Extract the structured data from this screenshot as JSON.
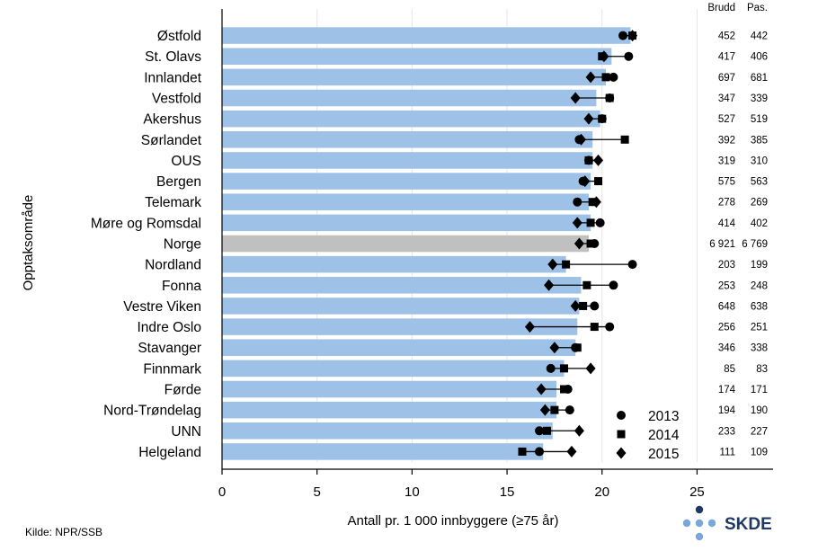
{
  "chart_data": {
    "type": "bar",
    "orientation": "horizontal",
    "ylabel": "Opptaksområde",
    "xlabel": "Antall pr. 1 000 innbyggere (≥75 år)",
    "xlim": [
      0,
      29
    ],
    "xticks": [
      "0",
      "5",
      "10",
      "15",
      "20",
      "25"
    ],
    "xtick_values": [
      0,
      5,
      10,
      15,
      20,
      25
    ],
    "grid": true,
    "legend_position": "bottom-right",
    "bar_color": "#9ec1e8",
    "highlight_bar_color": "#c0c0c0",
    "highlight_category": "Norge",
    "categories": [
      "Østfold",
      "St. Olavs",
      "Innlandet",
      "Vestfold",
      "Akershus",
      "Sørlandet",
      "OUS",
      "Bergen",
      "Telemark",
      "Møre og Romsdal",
      "Norge",
      "Nordland",
      "Fonna",
      "Vestre Viken",
      "Indre Oslo",
      "Stavanger",
      "Finnmark",
      "Førde",
      "Nord-Trøndelag",
      "UNN",
      "Helgeland"
    ],
    "values": [
      21.5,
      20.5,
      20.2,
      19.7,
      19.9,
      19.5,
      19.5,
      19.4,
      19.3,
      19.4,
      19.3,
      18.1,
      18.9,
      18.8,
      18.7,
      18.6,
      18.0,
      17.6,
      17.6,
      17.4,
      16.9
    ],
    "series": [
      {
        "name": "2013",
        "marker": "circle",
        "values": [
          21.1,
          21.4,
          20.6,
          20.4,
          20.0,
          18.8,
          19.3,
          19.0,
          18.7,
          19.9,
          19.6,
          21.6,
          20.6,
          19.6,
          20.4,
          18.6,
          17.3,
          18.2,
          18.3,
          16.7,
          16.7
        ]
      },
      {
        "name": "2014",
        "marker": "square",
        "values": [
          21.6,
          20.0,
          20.2,
          20.4,
          20.0,
          21.2,
          19.3,
          19.8,
          19.5,
          19.4,
          19.4,
          18.1,
          19.2,
          19.0,
          19.6,
          18.7,
          18.0,
          18.0,
          17.5,
          17.1,
          15.8
        ]
      },
      {
        "name": "2015",
        "marker": "diamond",
        "values": [
          21.6,
          20.1,
          19.4,
          18.6,
          19.3,
          18.9,
          19.8,
          19.1,
          19.7,
          18.7,
          18.8,
          17.4,
          17.2,
          18.6,
          16.2,
          17.5,
          19.4,
          16.8,
          17.0,
          18.8,
          18.4
        ]
      }
    ],
    "table": {
      "headers": [
        "Brudd",
        "Pas."
      ],
      "rows": [
        [
          "452",
          "442"
        ],
        [
          "417",
          "406"
        ],
        [
          "697",
          "681"
        ],
        [
          "347",
          "339"
        ],
        [
          "527",
          "519"
        ],
        [
          "392",
          "385"
        ],
        [
          "319",
          "310"
        ],
        [
          "575",
          "563"
        ],
        [
          "278",
          "269"
        ],
        [
          "414",
          "402"
        ],
        [
          "6 921",
          "6 769"
        ],
        [
          "203",
          "199"
        ],
        [
          "253",
          "248"
        ],
        [
          "648",
          "638"
        ],
        [
          "256",
          "251"
        ],
        [
          "346",
          "338"
        ],
        [
          "85",
          "83"
        ],
        [
          "174",
          "171"
        ],
        [
          "194",
          "190"
        ],
        [
          "233",
          "227"
        ],
        [
          "111",
          "109"
        ]
      ]
    }
  },
  "footer": {
    "source": "Kilde: NPR/SSB",
    "logo_text": "SKDE",
    "logo_color": "#1f3864",
    "logo_dot_color": "#7aa6db"
  }
}
